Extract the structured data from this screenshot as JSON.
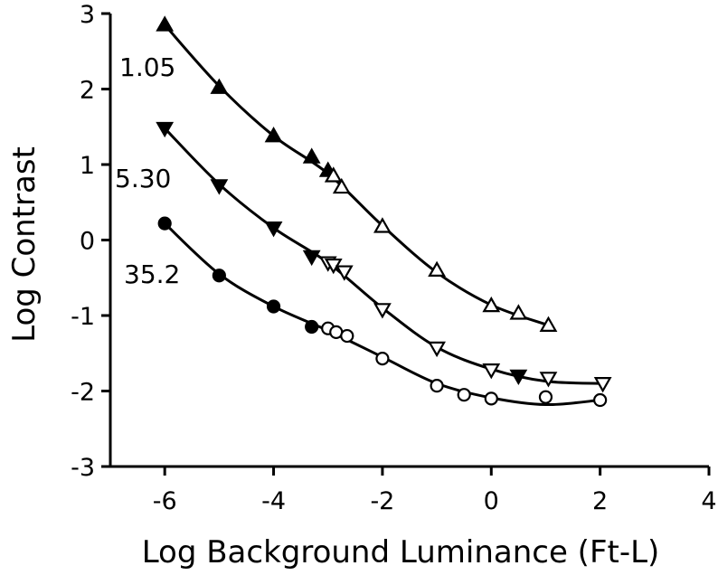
{
  "chart_data": {
    "type": "scatter",
    "xlabel": "Log Background Luminance (Ft-L)",
    "ylabel": "Log Contrast",
    "xlim": [
      -7,
      4
    ],
    "ylim": [
      -3,
      3
    ],
    "x_ticks": [
      -6,
      -4,
      -2,
      0,
      2,
      4
    ],
    "y_ticks": [
      3,
      2,
      1,
      0,
      -1,
      -2,
      -3
    ],
    "x_tick_labels": [
      "-6",
      "-4",
      "-2",
      "0",
      "2",
      "4"
    ],
    "y_tick_labels": [
      "3",
      "2",
      "1",
      "0",
      "-1",
      "-2",
      "-3"
    ],
    "grid": false,
    "legend": "none",
    "series": [
      {
        "name": "1.05",
        "marker": "triangle-up",
        "color": "#000000",
        "points": [
          {
            "x": -6.0,
            "y": 2.85,
            "filled": true
          },
          {
            "x": -5.0,
            "y": 2.02,
            "filled": true
          },
          {
            "x": -4.0,
            "y": 1.38,
            "filled": true
          },
          {
            "x": -3.3,
            "y": 1.1,
            "filled": true
          },
          {
            "x": -3.0,
            "y": 0.92,
            "filled": true
          },
          {
            "x": -2.9,
            "y": 0.85,
            "filled": false
          },
          {
            "x": -2.75,
            "y": 0.7,
            "filled": false
          },
          {
            "x": -2.0,
            "y": 0.18,
            "filled": false
          },
          {
            "x": -1.0,
            "y": -0.4,
            "filled": false
          },
          {
            "x": 0.0,
            "y": -0.87,
            "filled": false
          },
          {
            "x": 0.5,
            "y": -0.97,
            "filled": false
          },
          {
            "x": 1.05,
            "y": -1.13,
            "filled": false
          }
        ],
        "curve": [
          [
            -6,
            2.85
          ],
          [
            -5,
            2.04
          ],
          [
            -4,
            1.38
          ],
          [
            -3,
            0.88
          ],
          [
            -2,
            0.19
          ],
          [
            -1,
            -0.43
          ],
          [
            0,
            -0.86
          ],
          [
            1.05,
            -1.13
          ]
        ]
      },
      {
        "name": "5.30",
        "marker": "triangle-down",
        "color": "#000000",
        "points": [
          {
            "x": -6.0,
            "y": 1.48,
            "filled": true
          },
          {
            "x": -5.0,
            "y": 0.72,
            "filled": true
          },
          {
            "x": -4.0,
            "y": 0.16,
            "filled": true
          },
          {
            "x": -3.3,
            "y": -0.22,
            "filled": true
          },
          {
            "x": -3.0,
            "y": -0.3,
            "filled": false
          },
          {
            "x": -2.9,
            "y": -0.33,
            "filled": false
          },
          {
            "x": -2.7,
            "y": -0.42,
            "filled": false
          },
          {
            "x": -2.0,
            "y": -0.92,
            "filled": false
          },
          {
            "x": -1.0,
            "y": -1.43,
            "filled": false
          },
          {
            "x": 0.0,
            "y": -1.72,
            "filled": false
          },
          {
            "x": 0.5,
            "y": -1.8,
            "filled": true
          },
          {
            "x": 1.05,
            "y": -1.83,
            "filled": false
          },
          {
            "x": 2.05,
            "y": -1.9,
            "filled": false
          }
        ],
        "curve": [
          [
            -6,
            1.48
          ],
          [
            -5,
            0.74
          ],
          [
            -4,
            0.16
          ],
          [
            -3,
            -0.3
          ],
          [
            -2,
            -0.9
          ],
          [
            -1,
            -1.42
          ],
          [
            0,
            -1.71
          ],
          [
            1,
            -1.87
          ],
          [
            2.05,
            -1.9
          ]
        ]
      },
      {
        "name": "35.2",
        "marker": "circle",
        "color": "#000000",
        "points": [
          {
            "x": -6.0,
            "y": 0.22,
            "filled": true
          },
          {
            "x": -5.0,
            "y": -0.47,
            "filled": true
          },
          {
            "x": -4.0,
            "y": -0.88,
            "filled": true
          },
          {
            "x": -3.3,
            "y": -1.15,
            "filled": true
          },
          {
            "x": -3.0,
            "y": -1.17,
            "filled": false
          },
          {
            "x": -2.85,
            "y": -1.22,
            "filled": false
          },
          {
            "x": -2.65,
            "y": -1.27,
            "filled": false
          },
          {
            "x": -2.0,
            "y": -1.57,
            "filled": false
          },
          {
            "x": -1.0,
            "y": -1.93,
            "filled": false
          },
          {
            "x": -0.5,
            "y": -2.05,
            "filled": false
          },
          {
            "x": 0.0,
            "y": -2.1,
            "filled": false
          },
          {
            "x": 1.0,
            "y": -2.08,
            "filled": false
          },
          {
            "x": 2.0,
            "y": -2.12,
            "filled": false
          }
        ],
        "curve": [
          [
            -6,
            0.22
          ],
          [
            -5,
            -0.45
          ],
          [
            -4,
            -0.88
          ],
          [
            -3,
            -1.2
          ],
          [
            -2,
            -1.55
          ],
          [
            -1,
            -1.9
          ],
          [
            0,
            -2.09
          ],
          [
            1,
            -2.18
          ],
          [
            2,
            -2.12
          ]
        ]
      }
    ]
  }
}
